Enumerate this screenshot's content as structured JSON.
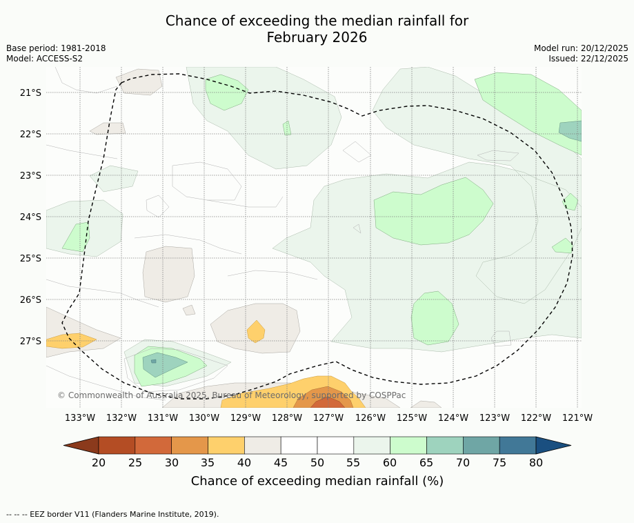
{
  "title": {
    "line1": "Chance of exceeding the median rainfall for",
    "line2": "February 2026"
  },
  "meta": {
    "base_period": "Base period: 1981-2018",
    "model": "Model: ACCESS-S2",
    "model_run": "Model run: 20/12/2025",
    "issued": "Issued: 22/12/2025"
  },
  "map": {
    "lat_labels": [
      "21°S",
      "22°S",
      "23°S",
      "24°S",
      "25°S",
      "26°S",
      "27°S"
    ],
    "lon_labels": [
      "133°W",
      "132°W",
      "131°W",
      "130°W",
      "129°W",
      "128°W",
      "127°W",
      "126°W",
      "125°W",
      "124°W",
      "123°W",
      "122°W",
      "121°W"
    ],
    "copyright": "© Commonwealth of Australia 2025, Bureau of Meteorology, supported by COSPPac"
  },
  "colorbar": {
    "ticks": [
      "20",
      "25",
      "30",
      "35",
      "40",
      "45",
      "50",
      "55",
      "60",
      "65",
      "70",
      "75",
      "80"
    ],
    "colors": [
      "#8b3a1c",
      "#b44d24",
      "#d2693a",
      "#e4974a",
      "#fed06c",
      "#efece6",
      "#ffffff",
      "#ffffff",
      "#ebf5ec",
      "#cdfccd",
      "#9ed3be",
      "#6fa6a5",
      "#417897",
      "#1a4f80"
    ],
    "title": "Chance of exceeding median rainfall (%)"
  },
  "footer": {
    "legend_text": "--  --  -- EEZ border V11 (Flanders Marine Institute, 2019)."
  }
}
